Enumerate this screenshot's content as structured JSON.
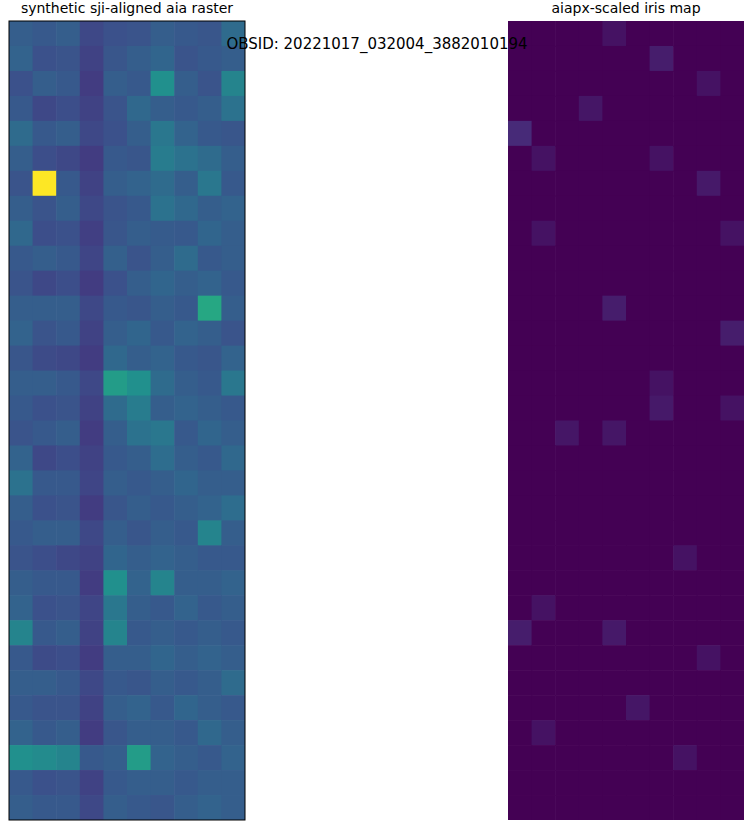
{
  "title": "OBSID: 20221017_032004_3882010194",
  "chart_data": [
    {
      "type": "heatmap",
      "title": "synthetic sji-aligned aia raster",
      "color": "viridis",
      "zlim": [
        0,
        1
      ],
      "tick_labels": false,
      "cells": [
        [
          0.3,
          0.28,
          0.3,
          0.22,
          0.25,
          0.26,
          0.3,
          0.28,
          0.27,
          0.35
        ],
        [
          0.32,
          0.25,
          0.26,
          0.2,
          0.27,
          0.3,
          0.33,
          0.26,
          0.28,
          0.3
        ],
        [
          0.25,
          0.3,
          0.28,
          0.18,
          0.3,
          0.28,
          0.5,
          0.3,
          0.26,
          0.45
        ],
        [
          0.28,
          0.22,
          0.24,
          0.2,
          0.26,
          0.34,
          0.3,
          0.28,
          0.3,
          0.38
        ],
        [
          0.35,
          0.28,
          0.3,
          0.22,
          0.25,
          0.3,
          0.4,
          0.32,
          0.28,
          0.27
        ],
        [
          0.3,
          0.24,
          0.22,
          0.18,
          0.28,
          0.27,
          0.42,
          0.38,
          0.35,
          0.3
        ],
        [
          0.26,
          1.0,
          0.28,
          0.2,
          0.3,
          0.32,
          0.35,
          0.3,
          0.4,
          0.28
        ],
        [
          0.3,
          0.26,
          0.3,
          0.22,
          0.26,
          0.28,
          0.38,
          0.34,
          0.3,
          0.32
        ],
        [
          0.34,
          0.24,
          0.25,
          0.19,
          0.27,
          0.3,
          0.29,
          0.28,
          0.33,
          0.3
        ],
        [
          0.28,
          0.3,
          0.28,
          0.21,
          0.31,
          0.26,
          0.3,
          0.35,
          0.28,
          0.3
        ],
        [
          0.26,
          0.22,
          0.24,
          0.18,
          0.25,
          0.3,
          0.33,
          0.3,
          0.32,
          0.28
        ],
        [
          0.3,
          0.3,
          0.3,
          0.22,
          0.28,
          0.27,
          0.3,
          0.28,
          0.6,
          0.3
        ],
        [
          0.32,
          0.26,
          0.28,
          0.2,
          0.3,
          0.33,
          0.28,
          0.32,
          0.3,
          0.26
        ],
        [
          0.27,
          0.23,
          0.22,
          0.18,
          0.34,
          0.3,
          0.32,
          0.28,
          0.27,
          0.32
        ],
        [
          0.3,
          0.3,
          0.28,
          0.22,
          0.55,
          0.5,
          0.35,
          0.3,
          0.28,
          0.4
        ],
        [
          0.28,
          0.25,
          0.26,
          0.2,
          0.35,
          0.42,
          0.3,
          0.32,
          0.3,
          0.28
        ],
        [
          0.26,
          0.28,
          0.3,
          0.18,
          0.3,
          0.38,
          0.4,
          0.28,
          0.33,
          0.3
        ],
        [
          0.32,
          0.22,
          0.24,
          0.2,
          0.28,
          0.3,
          0.36,
          0.3,
          0.28,
          0.34
        ],
        [
          0.38,
          0.28,
          0.28,
          0.21,
          0.3,
          0.28,
          0.3,
          0.33,
          0.3,
          0.3
        ],
        [
          0.3,
          0.25,
          0.26,
          0.18,
          0.27,
          0.3,
          0.28,
          0.3,
          0.32,
          0.36
        ],
        [
          0.28,
          0.3,
          0.3,
          0.22,
          0.3,
          0.27,
          0.3,
          0.28,
          0.45,
          0.3
        ],
        [
          0.26,
          0.24,
          0.22,
          0.2,
          0.33,
          0.3,
          0.32,
          0.3,
          0.28,
          0.28
        ],
        [
          0.3,
          0.28,
          0.28,
          0.18,
          0.5,
          0.32,
          0.45,
          0.3,
          0.3,
          0.32
        ],
        [
          0.32,
          0.25,
          0.26,
          0.21,
          0.4,
          0.3,
          0.28,
          0.32,
          0.28,
          0.3
        ],
        [
          0.45,
          0.28,
          0.3,
          0.2,
          0.45,
          0.28,
          0.3,
          0.28,
          0.3,
          0.28
        ],
        [
          0.28,
          0.23,
          0.24,
          0.18,
          0.3,
          0.3,
          0.33,
          0.3,
          0.32,
          0.3
        ],
        [
          0.3,
          0.3,
          0.28,
          0.22,
          0.28,
          0.27,
          0.3,
          0.28,
          0.3,
          0.35
        ],
        [
          0.28,
          0.26,
          0.26,
          0.2,
          0.3,
          0.32,
          0.28,
          0.33,
          0.3,
          0.28
        ],
        [
          0.32,
          0.28,
          0.3,
          0.18,
          0.27,
          0.3,
          0.3,
          0.28,
          0.34,
          0.3
        ],
        [
          0.5,
          0.48,
          0.45,
          0.28,
          0.3,
          0.55,
          0.32,
          0.3,
          0.28,
          0.32
        ],
        [
          0.28,
          0.25,
          0.26,
          0.2,
          0.28,
          0.3,
          0.3,
          0.28,
          0.3,
          0.3
        ],
        [
          0.3,
          0.28,
          0.28,
          0.22,
          0.3,
          0.28,
          0.27,
          0.3,
          0.32,
          0.3
        ]
      ]
    },
    {
      "type": "heatmap",
      "title": "aiapx-scaled iris map",
      "color": "viridis",
      "zlim": [
        0,
        1
      ],
      "tick_labels": false,
      "cells": [
        [
          0.0,
          0.0,
          0.0,
          0.0,
          0.05,
          0.0,
          0.0,
          0.0,
          0.0,
          0.0
        ],
        [
          0.0,
          0.0,
          0.0,
          0.0,
          0.0,
          0.0,
          0.08,
          0.0,
          0.0,
          0.0
        ],
        [
          0.0,
          0.0,
          0.0,
          0.0,
          0.0,
          0.0,
          0.0,
          0.0,
          0.05,
          0.0
        ],
        [
          0.0,
          0.0,
          0.0,
          0.06,
          0.0,
          0.0,
          0.0,
          0.0,
          0.0,
          0.0
        ],
        [
          0.12,
          0.0,
          0.0,
          0.0,
          0.0,
          0.0,
          0.0,
          0.0,
          0.0,
          0.0
        ],
        [
          0.0,
          0.05,
          0.0,
          0.0,
          0.0,
          0.0,
          0.05,
          0.0,
          0.0,
          0.0
        ],
        [
          0.0,
          0.0,
          0.0,
          0.0,
          0.0,
          0.0,
          0.0,
          0.0,
          0.07,
          0.0
        ],
        [
          0.0,
          0.0,
          0.0,
          0.0,
          0.0,
          0.0,
          0.0,
          0.0,
          0.0,
          0.0
        ],
        [
          0.0,
          0.05,
          0.0,
          0.0,
          0.0,
          0.0,
          0.0,
          0.0,
          0.0,
          0.05
        ],
        [
          0.0,
          0.0,
          0.0,
          0.0,
          0.0,
          0.0,
          0.0,
          0.0,
          0.0,
          0.0
        ],
        [
          0.0,
          0.0,
          0.0,
          0.0,
          0.0,
          0.0,
          0.0,
          0.0,
          0.0,
          0.0
        ],
        [
          0.0,
          0.0,
          0.0,
          0.0,
          0.08,
          0.0,
          0.0,
          0.0,
          0.0,
          0.0
        ],
        [
          0.0,
          0.0,
          0.0,
          0.0,
          0.0,
          0.0,
          0.0,
          0.0,
          0.0,
          0.08
        ],
        [
          0.0,
          0.0,
          0.0,
          0.0,
          0.0,
          0.0,
          0.0,
          0.0,
          0.0,
          0.0
        ],
        [
          0.0,
          0.0,
          0.0,
          0.0,
          0.0,
          0.0,
          0.05,
          0.0,
          0.0,
          0.0
        ],
        [
          0.0,
          0.0,
          0.0,
          0.0,
          0.0,
          0.0,
          0.07,
          0.0,
          0.0,
          0.05
        ],
        [
          0.0,
          0.0,
          0.06,
          0.0,
          0.06,
          0.0,
          0.0,
          0.0,
          0.0,
          0.0
        ],
        [
          0.0,
          0.0,
          0.0,
          0.0,
          0.0,
          0.0,
          0.0,
          0.0,
          0.0,
          0.0
        ],
        [
          0.0,
          0.0,
          0.0,
          0.0,
          0.0,
          0.0,
          0.0,
          0.0,
          0.0,
          0.0
        ],
        [
          0.0,
          0.0,
          0.0,
          0.0,
          0.0,
          0.0,
          0.0,
          0.0,
          0.0,
          0.0
        ],
        [
          0.0,
          0.0,
          0.0,
          0.0,
          0.0,
          0.0,
          0.0,
          0.0,
          0.0,
          0.0
        ],
        [
          0.0,
          0.0,
          0.0,
          0.0,
          0.0,
          0.0,
          0.0,
          0.05,
          0.0,
          0.0
        ],
        [
          0.0,
          0.0,
          0.0,
          0.0,
          0.0,
          0.0,
          0.0,
          0.0,
          0.0,
          0.0
        ],
        [
          0.0,
          0.05,
          0.0,
          0.0,
          0.0,
          0.0,
          0.0,
          0.0,
          0.0,
          0.0
        ],
        [
          0.08,
          0.0,
          0.0,
          0.0,
          0.07,
          0.0,
          0.0,
          0.0,
          0.0,
          0.0
        ],
        [
          0.0,
          0.0,
          0.0,
          0.0,
          0.0,
          0.0,
          0.0,
          0.0,
          0.05,
          0.0
        ],
        [
          0.0,
          0.0,
          0.0,
          0.0,
          0.0,
          0.0,
          0.0,
          0.0,
          0.0,
          0.0
        ],
        [
          0.0,
          0.0,
          0.0,
          0.0,
          0.0,
          0.06,
          0.0,
          0.0,
          0.0,
          0.0
        ],
        [
          0.0,
          0.05,
          0.0,
          0.0,
          0.0,
          0.0,
          0.0,
          0.0,
          0.0,
          0.0
        ],
        [
          0.0,
          0.0,
          0.0,
          0.0,
          0.0,
          0.0,
          0.0,
          0.05,
          0.0,
          0.0
        ],
        [
          0.0,
          0.0,
          0.0,
          0.0,
          0.0,
          0.0,
          0.0,
          0.0,
          0.0,
          0.0
        ],
        [
          0.0,
          0.0,
          0.0,
          0.0,
          0.0,
          0.0,
          0.0,
          0.0,
          0.0,
          0.0
        ]
      ]
    }
  ]
}
